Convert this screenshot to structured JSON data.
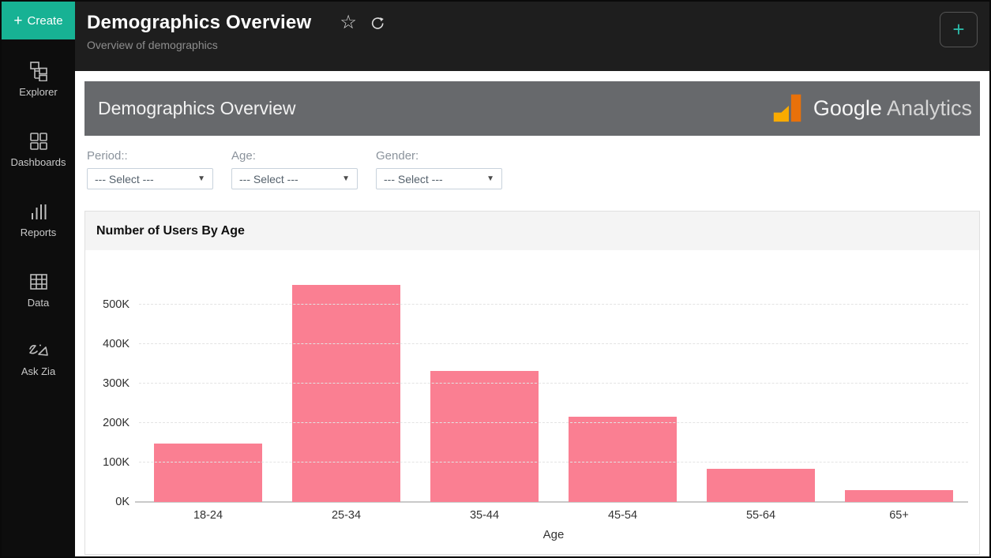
{
  "sidebar": {
    "create": {
      "label": "Create",
      "icon": "plus-icon"
    },
    "items": [
      {
        "label": "Explorer",
        "icon": "explorer-icon"
      },
      {
        "label": "Dashboards",
        "icon": "dashboards-icon"
      },
      {
        "label": "Reports",
        "icon": "reports-icon"
      },
      {
        "label": "Data",
        "icon": "data-icon"
      },
      {
        "label": "Ask Zia",
        "icon": "ask-zia-icon"
      }
    ]
  },
  "header": {
    "title": "Demographics Overview",
    "subtitle": "Overview of demographics",
    "actions": {
      "favorite_icon": "star-icon",
      "refresh_icon": "refresh-icon",
      "add_button_icon": "plus-icon"
    }
  },
  "banner": {
    "title": "Demographics Overview",
    "logo": {
      "brand": "Google",
      "product": "Analytics",
      "icon": "google-analytics-icon"
    }
  },
  "filters": [
    {
      "label": "Period::",
      "value": "--- Select ---"
    },
    {
      "label": "Age:",
      "value": "--- Select ---"
    },
    {
      "label": "Gender:",
      "value": "--- Select ---"
    }
  ],
  "chart_data": {
    "type": "bar",
    "title": "Number of Users By Age",
    "categories": [
      "18-24",
      "25-34",
      "35-44",
      "45-54",
      "55-64",
      "65+"
    ],
    "values": [
      148000,
      550000,
      333000,
      217000,
      85000,
      30000
    ],
    "xlabel": "Age",
    "ylabel": "",
    "ylim": [
      0,
      570000
    ],
    "ytick_step": 100000,
    "ytick_labels": [
      "0K",
      "100K",
      "200K",
      "300K",
      "400K",
      "500K"
    ],
    "grid": "horizontal-dashed",
    "legend": "none",
    "bar_color": "#FA7F92"
  },
  "colors": {
    "accent_teal": "#17B294",
    "bar_pink": "#FA7F92",
    "banner_gray": "#67696C",
    "ga_orange_light": "#F9AB00",
    "ga_orange_dark": "#E8710A",
    "sidebar_bg": "#0D0D0D",
    "topbar_bg": "#1E1E1E"
  }
}
